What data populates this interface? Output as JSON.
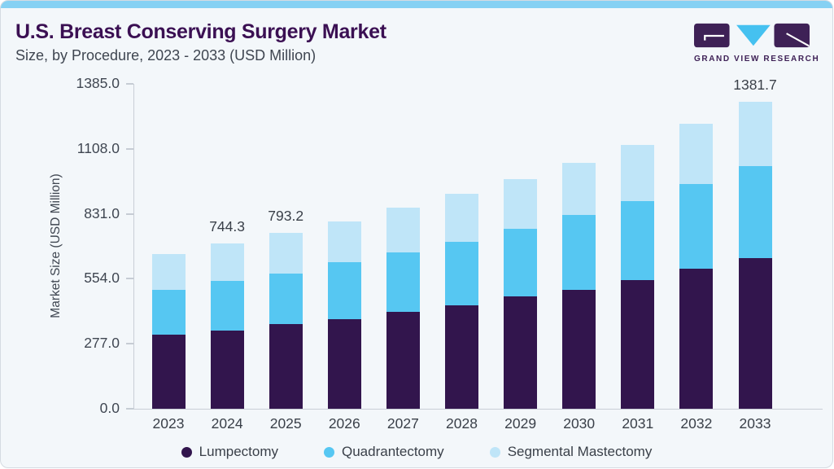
{
  "header": {
    "title": "U.S. Breast Conserving Surgery Market",
    "subtitle": "Size, by Procedure, 2023 - 2033 (USD Million)",
    "logo_text": "GRAND VIEW RESEARCH"
  },
  "colors": {
    "accent_top_bar": "#86d1f3",
    "card_background": "#f3f7fa",
    "title_text": "#3b1053",
    "body_text": "#3f4651",
    "axis_line": "#c9ced6",
    "logo_purple": "#3e2156",
    "logo_blue": "#45c1f0"
  },
  "chart_data": {
    "type": "bar",
    "stacked": true,
    "title": "U.S. Breast Conserving Surgery Market",
    "subtitle": "Size, by Procedure, 2023 - 2033 (USD Million)",
    "xlabel": "",
    "ylabel": "Market Size (USD Million)",
    "ylim": [
      0,
      1385
    ],
    "yticks": [
      0,
      277,
      554,
      831,
      1108,
      1385
    ],
    "ytick_labels": [
      "0.0",
      "277.0",
      "554.0",
      "831.0",
      "1108.0",
      "1385.0"
    ],
    "grid": false,
    "legend_position": "bottom",
    "categories": [
      "2023",
      "2024",
      "2025",
      "2026",
      "2027",
      "2028",
      "2029",
      "2030",
      "2031",
      "2032",
      "2033"
    ],
    "series": [
      {
        "name": "Lumpectomy",
        "color": "#32154d",
        "values": [
          332,
          353,
          383,
          405,
          437,
          467,
          505,
          537,
          579,
          629,
          678
        ]
      },
      {
        "name": "Quadrantectomy",
        "color": "#56c7f2",
        "values": [
          203,
          221,
          227,
          255,
          268,
          286,
          306,
          335,
          357,
          382,
          414
        ]
      },
      {
        "name": "Segmental Mastectomy",
        "color": "#bfe5f8",
        "values": [
          162,
          170.3,
          183.2,
          182,
          200,
          213,
          221,
          235,
          251,
          271,
          289.7
        ]
      }
    ],
    "totals": [
      697,
      744.3,
      793.2,
      842,
      905,
      966,
      1032,
      1107,
      1187,
      1282,
      1381.7
    ],
    "bar_labels": [
      "",
      "744.3",
      "793.2",
      "",
      "",
      "",
      "",
      "",
      "",
      "",
      "1381.7"
    ]
  }
}
